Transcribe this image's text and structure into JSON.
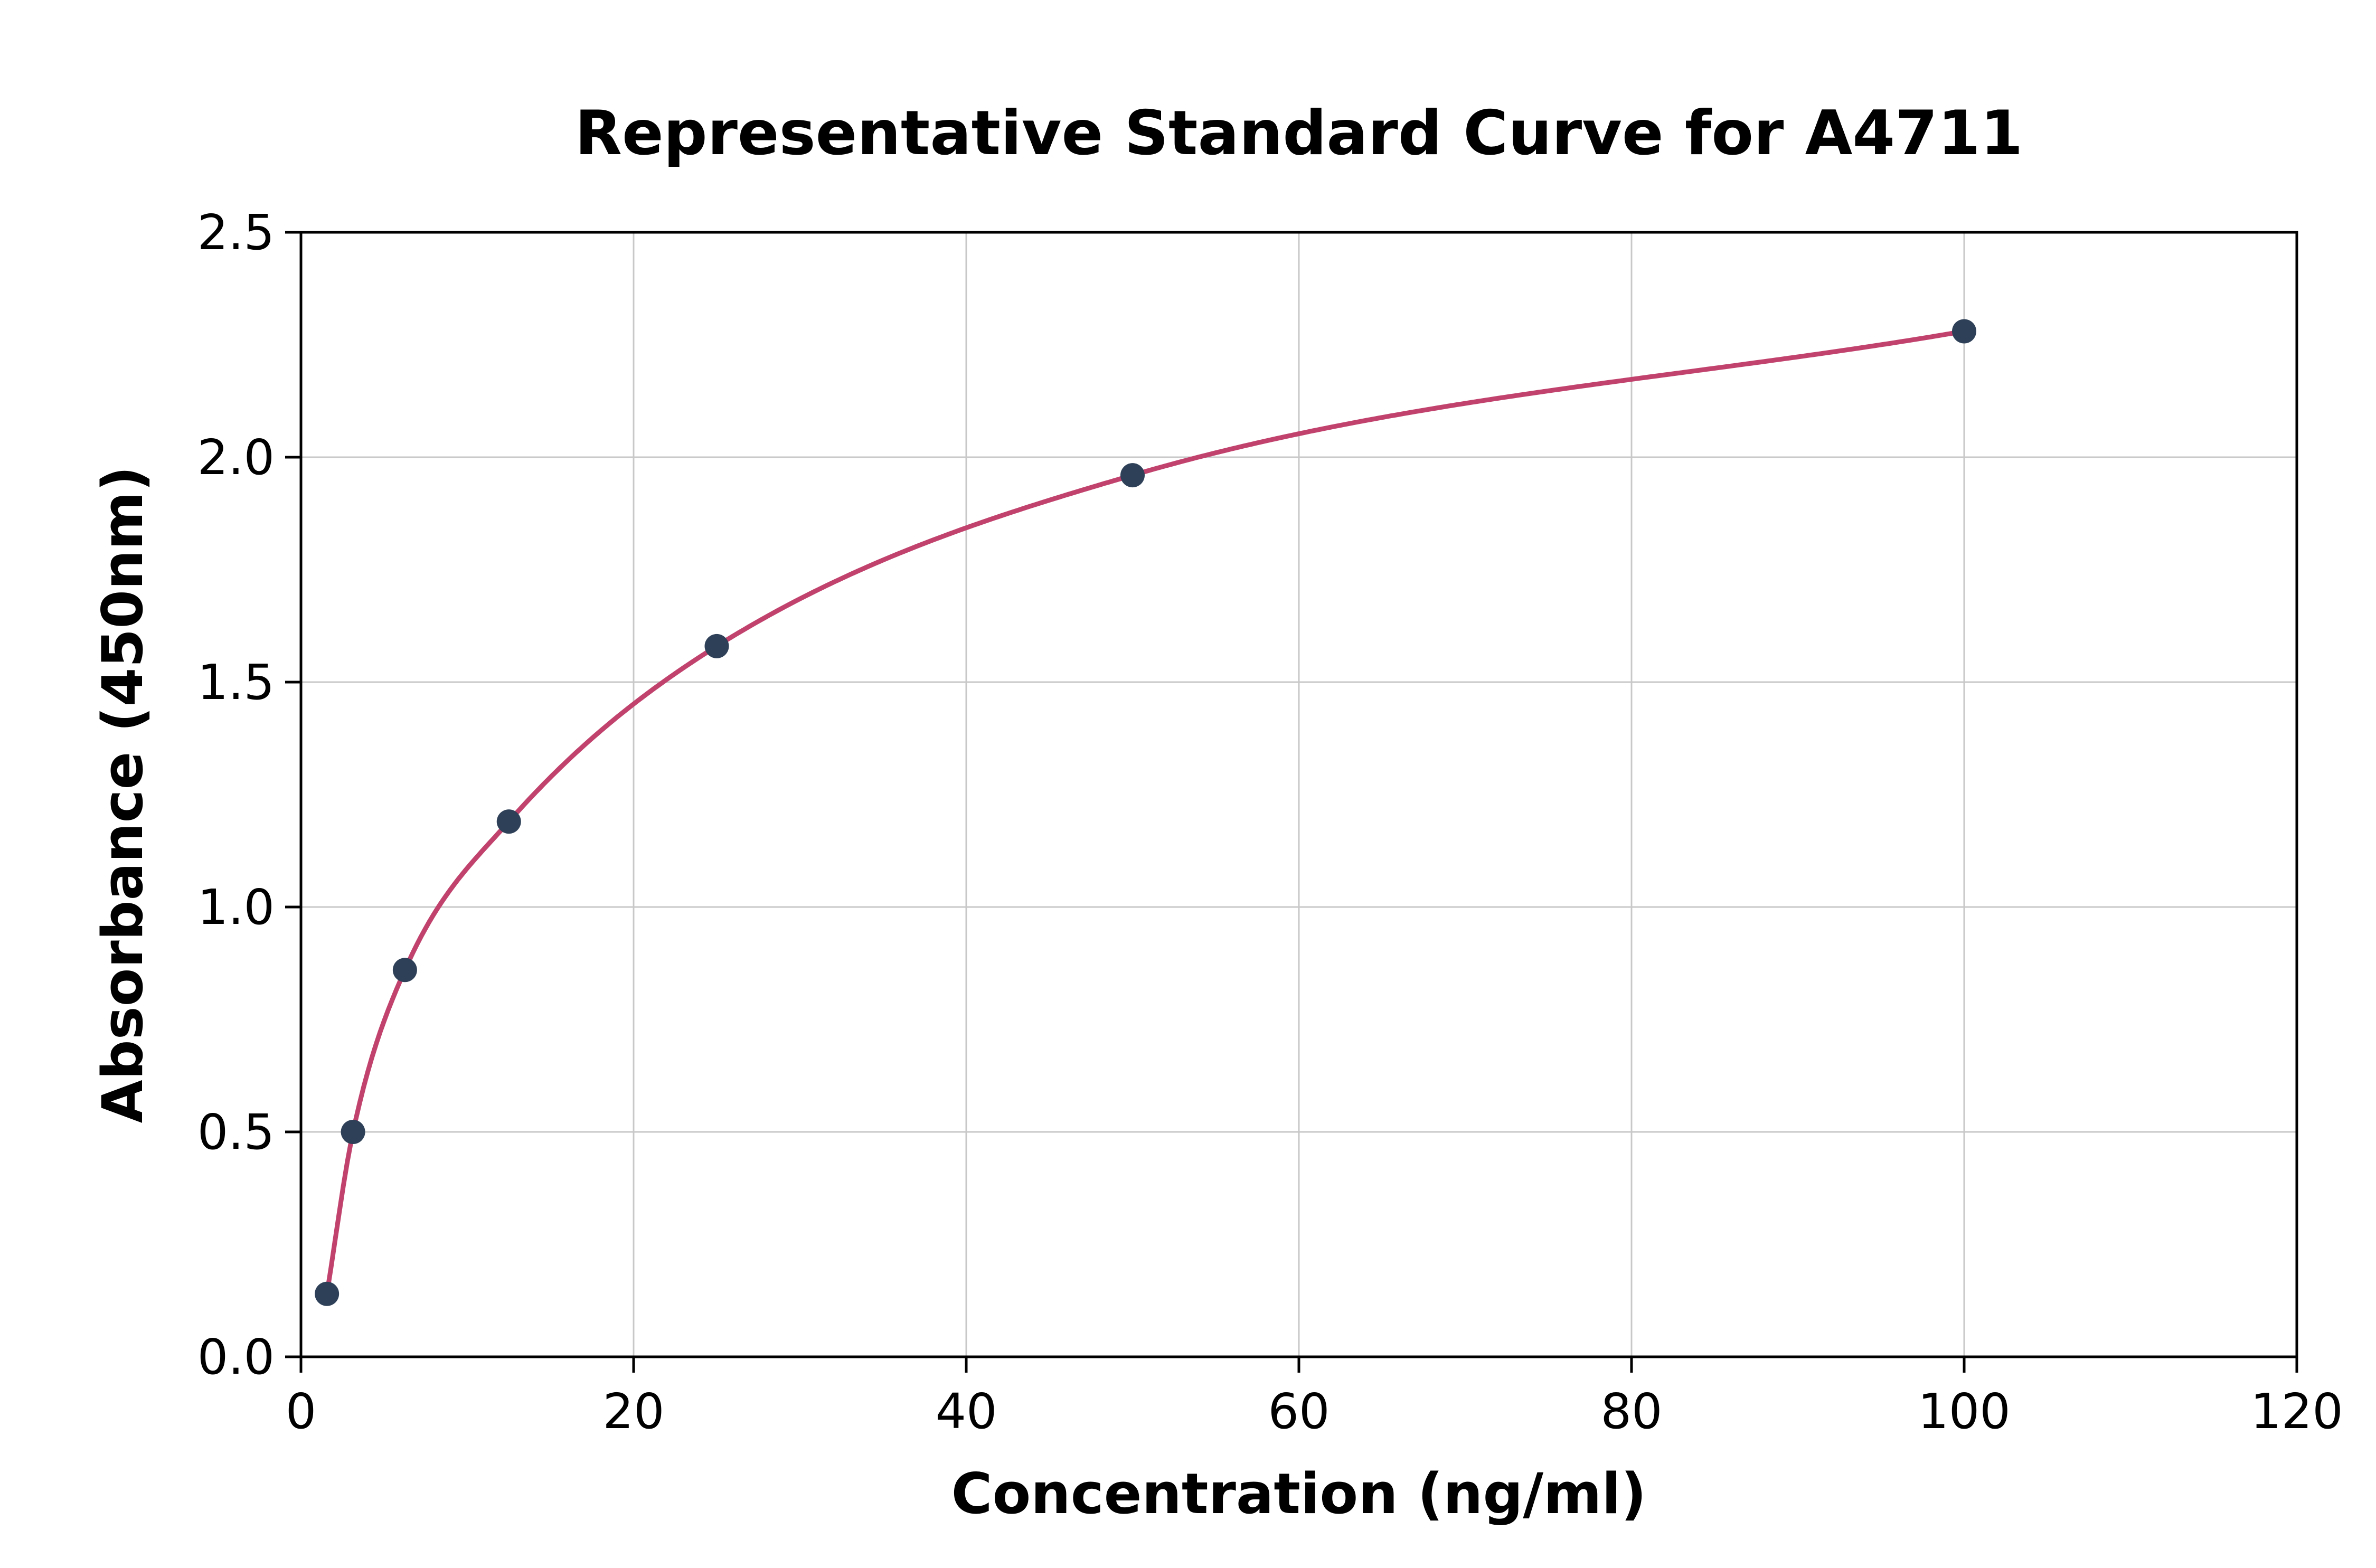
{
  "chart_data": {
    "type": "scatter",
    "title": "Representative Standard Curve for A4711",
    "xlabel": "Concentration (ng/ml)",
    "ylabel": "Absorbance (450nm)",
    "xlim": [
      0,
      120
    ],
    "ylim": [
      0,
      2.5
    ],
    "x_ticks": [
      0,
      20,
      40,
      60,
      80,
      100,
      120
    ],
    "x_tick_labels": [
      "0",
      "20",
      "40",
      "60",
      "80",
      "100",
      "120"
    ],
    "y_ticks": [
      0,
      0.5,
      1.0,
      1.5,
      2.0,
      2.5
    ],
    "y_tick_labels": [
      "0.0",
      "0.5",
      "1.0",
      "1.5",
      "2.0",
      "2.5"
    ],
    "grid": true,
    "legend_position": "none",
    "series": [
      {
        "name": "standards",
        "style": "points-with-smooth-fit-curve",
        "x": [
          1.56,
          3.13,
          6.25,
          12.5,
          25,
          50,
          100
        ],
        "y": [
          0.14,
          0.5,
          0.86,
          1.19,
          1.58,
          1.96,
          2.28
        ]
      }
    ],
    "colors": {
      "curve": "#c1436d",
      "points": "#2e4057",
      "grid": "#c8c8c8",
      "axis": "#000000",
      "text": "#000000",
      "background": "#ffffff"
    }
  }
}
